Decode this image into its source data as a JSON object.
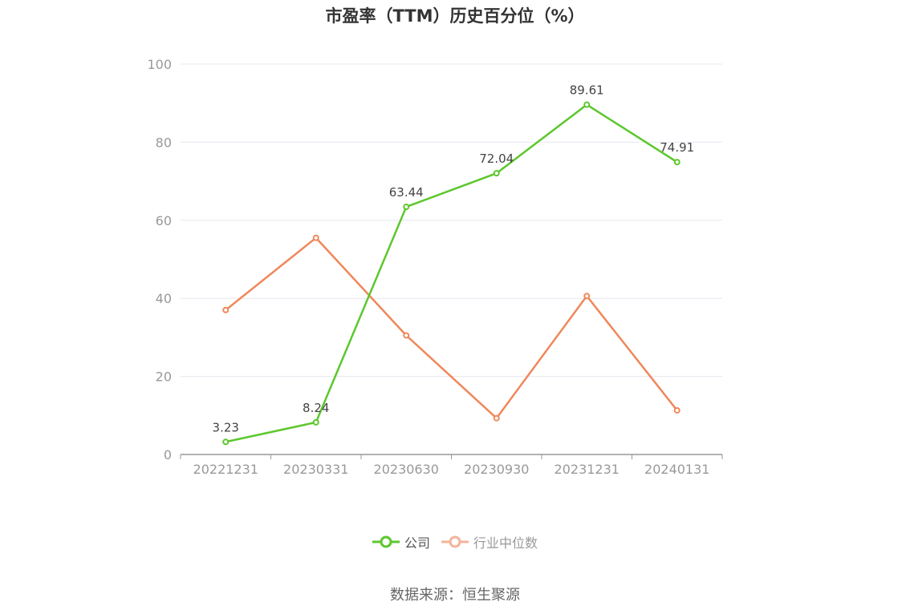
{
  "chart_data": {
    "type": "line",
    "title": "市盈率（TTM）历史百分位（%）",
    "categories": [
      "20221231",
      "20230331",
      "20230630",
      "20230930",
      "20231231",
      "20240131"
    ],
    "ylim": [
      0,
      100
    ],
    "yticks": [
      0,
      20,
      40,
      60,
      80,
      100
    ],
    "grid": true,
    "legend_position": "bottom",
    "series": [
      {
        "name": "公司",
        "values": [
          3.23,
          8.24,
          63.44,
          72.04,
          89.61,
          74.91
        ],
        "data_labels": [
          "3.23",
          "8.24",
          "63.44",
          "72.04",
          "89.61",
          "74.91"
        ],
        "color": "#5cc72c"
      },
      {
        "name": "行业中位数",
        "values": [
          37.0,
          55.5,
          30.5,
          9.3,
          40.6,
          11.3
        ],
        "color": "#f0875a",
        "legend_color": "#f4b39a"
      }
    ]
  },
  "source": "数据来源：恒生聚源"
}
